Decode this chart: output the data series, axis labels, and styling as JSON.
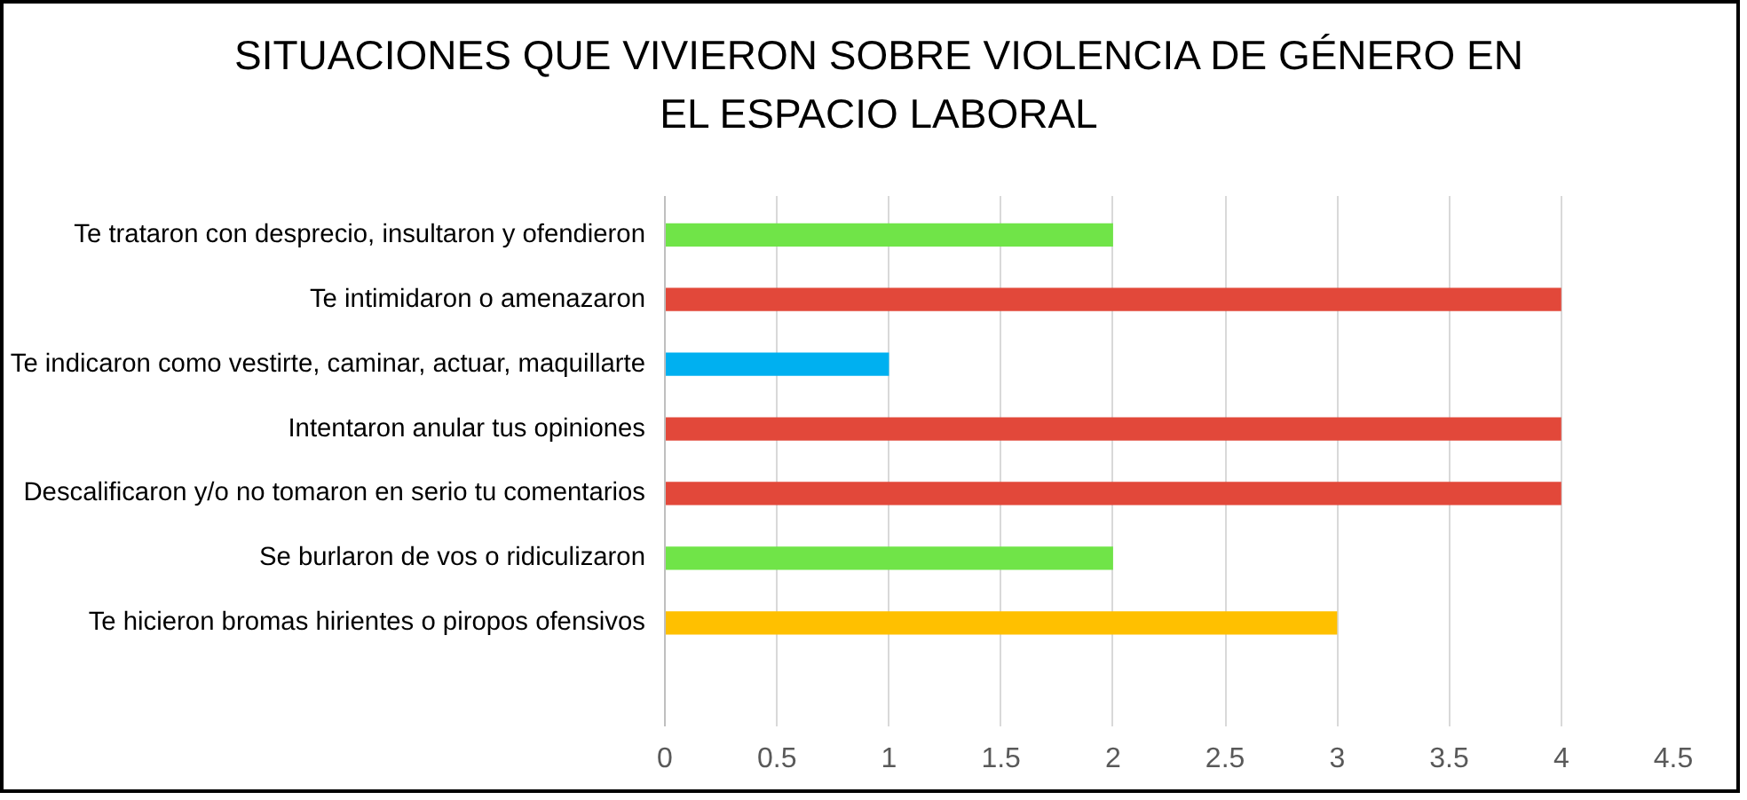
{
  "chart_data": {
    "type": "bar",
    "orientation": "horizontal",
    "title": "SITUACIONES QUE VIVIERON SOBRE VIOLENCIA DE GÉNERO EN\nEL ESPACIO LABORAL",
    "categories": [
      "Te trataron con desprecio, insultaron y ofendieron",
      "Te intimidaron o amenazaron",
      "Te indicaron como vestirte, caminar, actuar, maquillarte",
      "Intentaron anular tus opiniones",
      "Descalificaron y/o no tomaron en serio tu comentarios",
      "Se burlaron de vos o ridiculizaron",
      "Te hicieron bromas hirientes o piropos ofensivos"
    ],
    "values": [
      2,
      4,
      1,
      4,
      4,
      2,
      3
    ],
    "colors": [
      "#70e448",
      "#e2483a",
      "#00b0f0",
      "#e2483a",
      "#e2483a",
      "#70e448",
      "#ffc000"
    ],
    "xlim": [
      0,
      4.5
    ],
    "xticks": [
      0,
      0.5,
      1,
      1.5,
      2,
      2.5,
      3,
      3.5,
      4,
      4.5
    ],
    "grid": "x"
  }
}
